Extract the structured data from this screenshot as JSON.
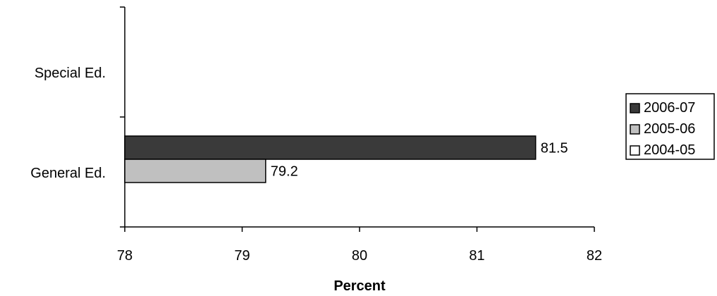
{
  "chart_data": {
    "type": "bar",
    "orientation": "horizontal",
    "categories": [
      "Special Ed.",
      "General Ed."
    ],
    "series": [
      {
        "name": "2006-07",
        "color": "#3a3a3a",
        "values": [
          null,
          81.5
        ]
      },
      {
        "name": "2005-06",
        "color": "#c0c0c0",
        "values": [
          null,
          79.2
        ]
      },
      {
        "name": "2004-05",
        "color": "#ffffff",
        "values": [
          null,
          null
        ]
      }
    ],
    "data_labels": [
      {
        "series": "2006-07",
        "category": "General Ed.",
        "text": "81.5"
      },
      {
        "series": "2005-06",
        "category": "General Ed.",
        "text": "79.2"
      }
    ],
    "xlabel": "Percent",
    "ylabel": "",
    "title": "",
    "xlim": [
      78,
      82
    ],
    "xticks": [
      "78",
      "79",
      "80",
      "81",
      "82"
    ],
    "grid": false,
    "legend_position": "right"
  }
}
